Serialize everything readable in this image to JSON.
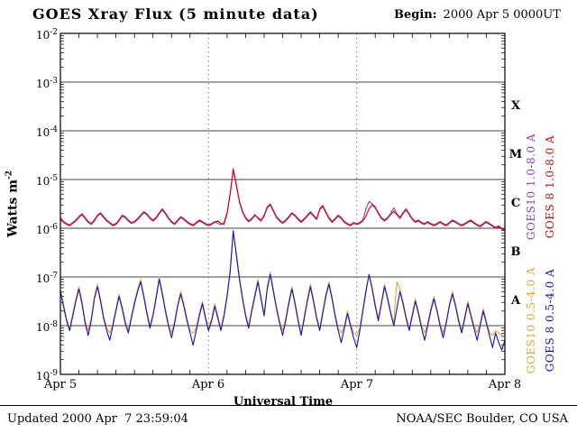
{
  "title": "GOES Xray Flux (5 minute data)",
  "begin": {
    "label": "Begin:",
    "value": "2000 Apr 5 0000UT"
  },
  "footer": {
    "updated": "Updated 2000 Apr  7 23:59:04",
    "credit": "NOAA/SEC Boulder, CO USA"
  },
  "axis": {
    "x": {
      "label": "Universal Time",
      "ticks": [
        "Apr 5",
        "Apr 6",
        "Apr 7",
        "Apr 8"
      ]
    },
    "y": {
      "base": "10",
      "tick_exponents": [
        "-2",
        "-3",
        "-4",
        "-5",
        "-6",
        "-7",
        "-8",
        "-9"
      ],
      "label_main": "Watts m",
      "label_sup": "-2"
    }
  },
  "flare_classes": [
    "X",
    "M",
    "C",
    "B",
    "A"
  ],
  "chart_data": {
    "type": "line",
    "title": "GOES Xray Flux (5 minute data)",
    "xlabel": "Universal Time",
    "ylabel": "Watts m^-2",
    "x_hours_range": [
      0,
      72
    ],
    "x_step_hours": 0.5,
    "y_log10_range": [
      -9,
      -2
    ],
    "x_day_ticks": [
      "Apr 5",
      "Apr 6",
      "Apr 7",
      "Apr 8"
    ],
    "grid": {
      "horizontal_decades": [
        -3,
        -4,
        -5,
        -6,
        -7,
        -8
      ],
      "dashed_day_lines_hours": [
        24,
        48
      ]
    },
    "series": [
      {
        "name": "GOES10 1.0-8.0 A",
        "color": "#8040c0",
        "log10_flux": [
          -5.78,
          -5.86,
          -5.9,
          -5.93,
          -5.88,
          -5.83,
          -5.76,
          -5.7,
          -5.78,
          -5.86,
          -5.9,
          -5.83,
          -5.73,
          -5.68,
          -5.76,
          -5.83,
          -5.88,
          -5.93,
          -5.9,
          -5.83,
          -5.73,
          -5.76,
          -5.83,
          -5.88,
          -5.86,
          -5.8,
          -5.73,
          -5.66,
          -5.7,
          -5.78,
          -5.83,
          -5.78,
          -5.68,
          -5.6,
          -5.68,
          -5.78,
          -5.86,
          -5.9,
          -5.83,
          -5.76,
          -5.8,
          -5.86,
          -5.9,
          -5.93,
          -5.88,
          -5.83,
          -5.86,
          -5.9,
          -5.93,
          -5.9,
          -5.86,
          -5.9,
          -5.93,
          -5.88,
          -5.68,
          -5.28,
          -4.82,
          -5.12,
          -5.47,
          -5.67,
          -5.8,
          -5.87,
          -5.82,
          -5.74,
          -5.78,
          -5.83,
          -5.73,
          -5.56,
          -5.5,
          -5.63,
          -5.76,
          -5.83,
          -5.88,
          -5.83,
          -5.76,
          -5.68,
          -5.73,
          -5.8,
          -5.86,
          -5.8,
          -5.73,
          -5.66,
          -5.73,
          -5.8,
          -5.6,
          -5.53,
          -5.66,
          -5.78,
          -5.86,
          -5.8,
          -5.73,
          -5.78,
          -5.86,
          -5.9,
          -5.93,
          -5.88,
          -5.9,
          -5.88,
          -5.83,
          -5.6,
          -5.45,
          -5.5,
          -5.56,
          -5.68,
          -5.78,
          -5.83,
          -5.78,
          -5.7,
          -5.58,
          -5.7,
          -5.78,
          -5.68,
          -5.6,
          -5.7,
          -5.8,
          -5.86,
          -5.83,
          -5.88,
          -5.9,
          -5.86,
          -5.9,
          -5.93,
          -5.9,
          -5.86,
          -5.9,
          -5.93,
          -5.88,
          -5.83,
          -5.86,
          -5.9,
          -5.93,
          -5.9,
          -5.86,
          -5.83,
          -5.88,
          -5.92,
          -5.95,
          -5.9,
          -5.86,
          -5.9,
          -5.94,
          -5.98,
          -5.95,
          -6.0,
          -6.03
        ]
      },
      {
        "name": "GOES 8 1.0-8.0 A",
        "color": "#dd0000",
        "log10_flux": [
          -5.82,
          -5.88,
          -5.92,
          -5.95,
          -5.9,
          -5.85,
          -5.78,
          -5.72,
          -5.8,
          -5.88,
          -5.92,
          -5.85,
          -5.75,
          -5.7,
          -5.78,
          -5.85,
          -5.9,
          -5.95,
          -5.92,
          -5.85,
          -5.75,
          -5.78,
          -5.85,
          -5.9,
          -5.88,
          -5.82,
          -5.75,
          -5.68,
          -5.72,
          -5.8,
          -5.85,
          -5.8,
          -5.7,
          -5.62,
          -5.7,
          -5.8,
          -5.88,
          -5.92,
          -5.85,
          -5.78,
          -5.82,
          -5.88,
          -5.92,
          -5.95,
          -5.9,
          -5.85,
          -5.88,
          -5.92,
          -5.95,
          -5.92,
          -5.88,
          -5.85,
          -5.9,
          -5.92,
          -5.7,
          -5.3,
          -4.78,
          -5.1,
          -5.45,
          -5.65,
          -5.78,
          -5.85,
          -5.8,
          -5.72,
          -5.8,
          -5.85,
          -5.75,
          -5.58,
          -5.52,
          -5.65,
          -5.78,
          -5.85,
          -5.9,
          -5.85,
          -5.78,
          -5.7,
          -5.75,
          -5.82,
          -5.88,
          -5.82,
          -5.75,
          -5.68,
          -5.75,
          -5.82,
          -5.62,
          -5.55,
          -5.68,
          -5.8,
          -5.88,
          -5.82,
          -5.75,
          -5.8,
          -5.88,
          -5.92,
          -5.95,
          -5.9,
          -5.92,
          -5.9,
          -5.85,
          -5.75,
          -5.6,
          -5.52,
          -5.58,
          -5.7,
          -5.8,
          -5.85,
          -5.8,
          -5.72,
          -5.65,
          -5.72,
          -5.8,
          -5.7,
          -5.62,
          -5.72,
          -5.82,
          -5.88,
          -5.85,
          -5.9,
          -5.92,
          -5.88,
          -5.92,
          -5.95,
          -5.92,
          -5.88,
          -5.92,
          -5.95,
          -5.9,
          -5.85,
          -5.88,
          -5.92,
          -5.95,
          -5.92,
          -5.88,
          -5.85,
          -5.9,
          -5.94,
          -5.97,
          -5.92,
          -5.88,
          -5.92,
          -5.96,
          -6.0,
          -5.97,
          -6.02,
          -6.05
        ]
      },
      {
        "name": "GOES10 0.5-4.0 A",
        "color": "#f0a030",
        "log10_flux": [
          -7.25,
          -7.55,
          -7.85,
          -8.05,
          -7.75,
          -7.45,
          -7.2,
          -7.5,
          -7.9,
          -8.1,
          -7.85,
          -7.4,
          -7.15,
          -7.45,
          -7.8,
          -8.05,
          -8.15,
          -7.95,
          -7.65,
          -7.35,
          -7.6,
          -7.9,
          -8.1,
          -7.8,
          -7.5,
          -7.25,
          -7.05,
          -7.35,
          -7.7,
          -8.0,
          -7.75,
          -7.4,
          -7.0,
          -7.3,
          -7.65,
          -7.95,
          -8.15,
          -7.9,
          -7.55,
          -7.3,
          -7.55,
          -7.85,
          -8.1,
          -8.15,
          -8.05,
          -7.75,
          -7.5,
          -7.8,
          -8.05,
          -7.85,
          -7.55,
          -7.8,
          -8.05,
          -7.75,
          -7.35,
          -6.85,
          -6.1,
          -6.5,
          -7.0,
          -7.4,
          -7.75,
          -8.0,
          -7.65,
          -7.35,
          -7.05,
          -7.4,
          -7.75,
          -7.2,
          -6.9,
          -7.25,
          -7.6,
          -7.9,
          -8.1,
          -7.85,
          -7.5,
          -7.2,
          -7.5,
          -7.85,
          -8.15,
          -7.8,
          -7.45,
          -7.15,
          -7.45,
          -7.8,
          -8.05,
          -7.7,
          -7.35,
          -7.1,
          -7.4,
          -7.75,
          -8.05,
          -8.15,
          -8.0,
          -7.7,
          -7.95,
          -8.15,
          -8.2,
          -8.05,
          -7.65,
          -7.25,
          -6.95,
          -7.2,
          -7.55,
          -7.85,
          -7.5,
          -7.15,
          -7.4,
          -7.7,
          -7.95,
          -7.1,
          -7.25,
          -7.5,
          -7.8,
          -8.05,
          -7.75,
          -7.45,
          -7.7,
          -8.0,
          -8.15,
          -7.95,
          -7.65,
          -7.4,
          -7.65,
          -7.95,
          -8.15,
          -7.9,
          -7.55,
          -7.3,
          -7.55,
          -7.85,
          -8.1,
          -7.8,
          -7.5,
          -7.75,
          -8.0,
          -8.15,
          -7.95,
          -7.65,
          -7.9,
          -8.15,
          -8.2,
          -8.1,
          -8.15,
          -8.2,
          -8.15
        ]
      },
      {
        "name": "GOES 8 0.5-4.0 A",
        "color": "#1111cc",
        "log10_flux": [
          -7.3,
          -7.6,
          -7.9,
          -8.1,
          -7.8,
          -7.5,
          -7.25,
          -7.55,
          -7.95,
          -8.2,
          -7.9,
          -7.45,
          -7.2,
          -7.5,
          -7.85,
          -8.1,
          -8.3,
          -8.0,
          -7.7,
          -7.4,
          -7.65,
          -7.95,
          -8.15,
          -7.85,
          -7.55,
          -7.3,
          -7.1,
          -7.4,
          -7.75,
          -8.05,
          -7.8,
          -7.45,
          -7.05,
          -7.35,
          -7.7,
          -8.0,
          -8.25,
          -7.95,
          -7.6,
          -7.35,
          -7.6,
          -7.9,
          -8.15,
          -8.4,
          -8.1,
          -7.8,
          -7.55,
          -7.85,
          -8.1,
          -7.9,
          -7.6,
          -7.85,
          -8.1,
          -7.8,
          -7.4,
          -6.9,
          -6.05,
          -6.55,
          -7.05,
          -7.45,
          -7.8,
          -8.05,
          -7.7,
          -7.4,
          -7.1,
          -7.45,
          -7.8,
          -7.25,
          -6.95,
          -7.3,
          -7.65,
          -7.95,
          -8.2,
          -7.9,
          -7.55,
          -7.25,
          -7.55,
          -7.9,
          -8.2,
          -7.85,
          -7.5,
          -7.2,
          -7.5,
          -7.85,
          -8.1,
          -7.75,
          -7.4,
          -7.15,
          -7.45,
          -7.8,
          -8.1,
          -8.35,
          -8.05,
          -7.75,
          -8.0,
          -8.25,
          -8.45,
          -8.1,
          -7.7,
          -7.3,
          -6.95,
          -7.25,
          -7.6,
          -7.9,
          -7.55,
          -7.2,
          -7.45,
          -7.75,
          -8.0,
          -7.65,
          -7.3,
          -7.55,
          -7.85,
          -8.1,
          -7.8,
          -7.5,
          -7.75,
          -8.05,
          -8.3,
          -8.0,
          -7.7,
          -7.45,
          -7.7,
          -8.0,
          -8.25,
          -7.95,
          -7.6,
          -7.35,
          -7.6,
          -7.9,
          -8.15,
          -7.85,
          -7.55,
          -7.8,
          -8.05,
          -8.3,
          -8.0,
          -7.7,
          -7.95,
          -8.2,
          -8.45,
          -8.15,
          -8.35,
          -8.5,
          -8.3
        ]
      }
    ]
  }
}
